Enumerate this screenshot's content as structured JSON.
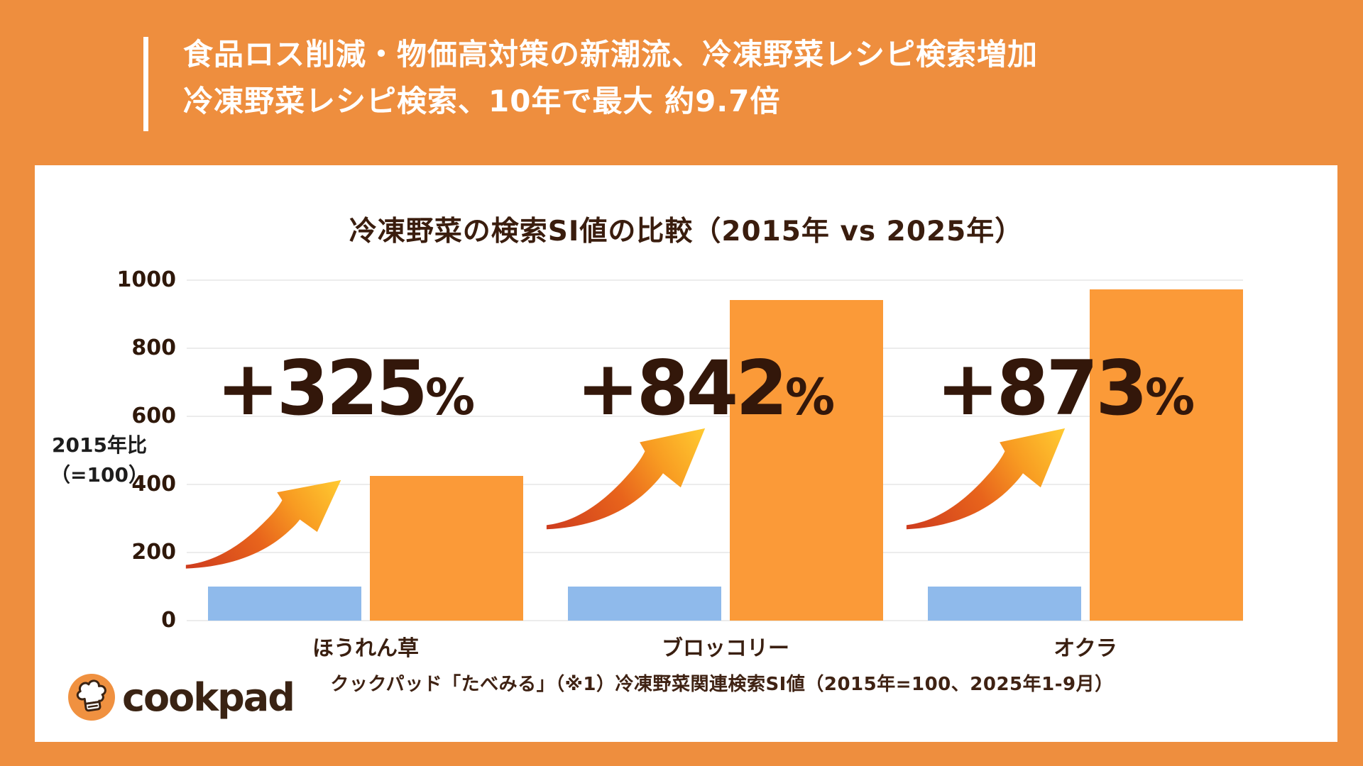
{
  "header": {
    "line1": "食品ロス削減・物価高対策の新潮流、冷凍野菜レシピ検索増加",
    "line2": "冷凍野菜レシピ検索、10年で最大 約9.7倍"
  },
  "chart": {
    "title": "冷凍野菜の検索SI値の比較（2015年 vs 2025年）",
    "y_axis": {
      "unit_line1": "2015年比",
      "unit_line2": "（=100）",
      "ticks": [
        "1000",
        "800",
        "600",
        "400",
        "200",
        "0"
      ]
    }
  },
  "chart_data": {
    "type": "bar",
    "title": "冷凍野菜の検索SI値の比較（2015年 vs 2025年）",
    "categories": [
      "ほうれん草",
      "ブロッコリー",
      "オクラ"
    ],
    "series": [
      {
        "name": "2015年",
        "color": "#8FBAEB",
        "values": [
          100,
          100,
          100
        ]
      },
      {
        "name": "2025年",
        "color": "#FB9A38",
        "values": [
          425,
          942,
          973
        ]
      }
    ],
    "growth_labels": [
      {
        "number": "+325",
        "unit": "%"
      },
      {
        "number": "+842",
        "unit": "%"
      },
      {
        "number": "+873",
        "unit": "%"
      }
    ],
    "ylabel": "2015年比（=100）",
    "ylim": [
      0,
      1000
    ],
    "grid": true,
    "legend": "none"
  },
  "footer": {
    "caption": "クックパッド「たべみる」（※1）冷凍野菜関連検索SI値（2015年=100、2025年1-9月）"
  },
  "logo": {
    "wordmark": "cookpad"
  },
  "colors": {
    "background_orange": "#EE8E3E",
    "card_white": "#FFFFFF",
    "bar_orange": "#FB9A38",
    "bar_blue": "#8FBAEB",
    "text_dark_brown": "#3A1D0E",
    "header_text_white": "#FFFFFF",
    "gridline_gray": "#ECECEC",
    "logo_circle_orange": "#F09140",
    "logo_text_brown": "#3A2313",
    "arrow_gradient": [
      "#CC391E",
      "#E8641C",
      "#F89C22",
      "#FFC930"
    ]
  }
}
